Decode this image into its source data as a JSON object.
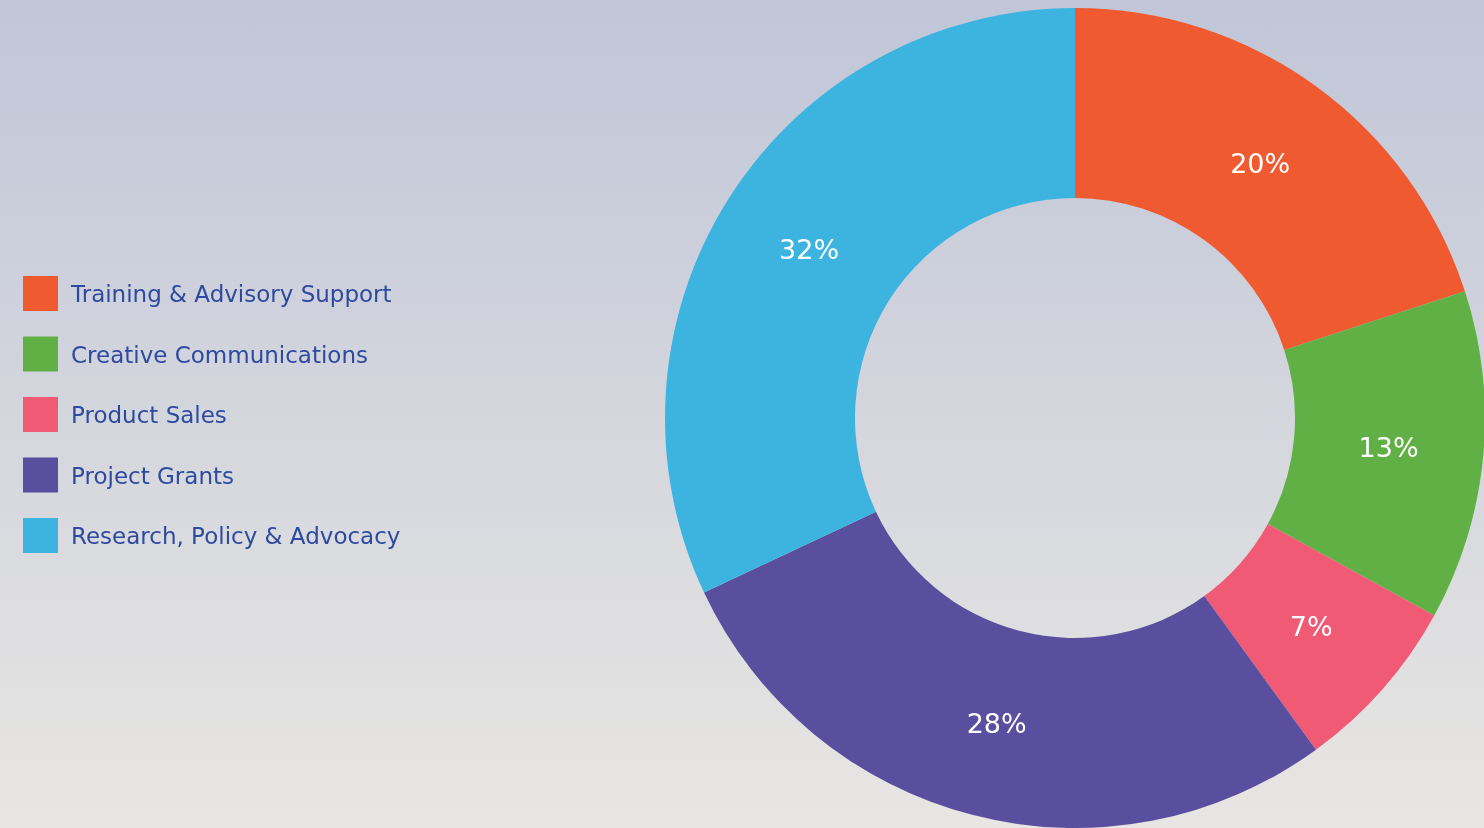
{
  "chart_data": {
    "type": "donut",
    "categories": [
      "Training & Advisory Support",
      "Creative Communications",
      "Product Sales",
      "Project Grants",
      "Research, Policy & Advocacy"
    ],
    "values": [
      20,
      13,
      7,
      28,
      32
    ],
    "colors": [
      "#f05a30",
      "#60b045",
      "#f05a74",
      "#5a4f9f",
      "#3db4e0"
    ],
    "value_labels": [
      "20%",
      "13%",
      "7%",
      "28%",
      "32%"
    ],
    "legend": "left"
  }
}
